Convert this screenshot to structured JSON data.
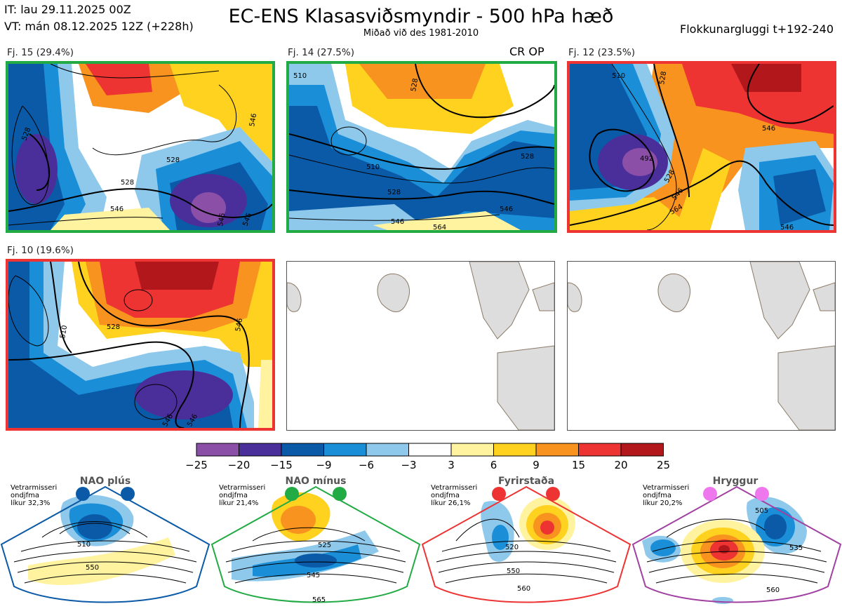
{
  "header": {
    "it": "IT: lau 29.11.2025 00Z",
    "vt": "VT: mán 08.12.2025 12Z  (+228h)",
    "title": "EC-ENS Klasasviðsmyndir - 500 hPa hæð",
    "subtitle": "Miðað við des 1981-2010",
    "window": "Flokkunargluggi t+192-240"
  },
  "panels": [
    {
      "label": "Fj. 15 (29.4%)",
      "border": "#22aa44",
      "extra": "",
      "contours": [
        "528",
        "528",
        "546",
        "528",
        "546",
        "546",
        "546"
      ]
    },
    {
      "label": "Fj. 14 (27.5%)",
      "border": "#22aa44",
      "extra": "CR OP",
      "contours": [
        "510",
        "528",
        "510",
        "528",
        "528",
        "546",
        "546",
        "564"
      ]
    },
    {
      "label": "Fj. 12 (23.5%)",
      "border": "#ee3333",
      "extra": "",
      "contours": [
        "510",
        "528",
        "492",
        "528",
        "546",
        "564",
        "546",
        "546"
      ]
    },
    {
      "label": "Fj. 10 (19.6%)",
      "border": "#ee3333",
      "extra": "",
      "contours": [
        "528",
        "546",
        "510",
        "546",
        "546"
      ]
    }
  ],
  "colorbar": {
    "ticks": [
      "−25",
      "−20",
      "−15",
      "−9",
      "−6",
      "−3",
      "3",
      "6",
      "9",
      "15",
      "20",
      "25"
    ],
    "colors": [
      "#8b4fa8",
      "#4a2f9a",
      "#0b5aa8",
      "#1a8fd8",
      "#8ec9ec",
      "#ffffff",
      "#fff3a0",
      "#ffd21f",
      "#f7931e",
      "#ee3333",
      "#b2181b"
    ]
  },
  "regimes": [
    {
      "name": "NAO plús",
      "info": [
        "Vetrarmisseri",
        "ondjfma",
        "líkur 32,3%"
      ],
      "color": "#0b5aa8",
      "contours": [
        "510",
        "550"
      ]
    },
    {
      "name": "NAO mínus",
      "info": [
        "Vetrarmisseri",
        "ondjfma",
        "líkur 21,4%"
      ],
      "color": "#22aa44",
      "contours": [
        "525",
        "545",
        "565"
      ]
    },
    {
      "name": "Fyrirstaða",
      "info": [
        "Vetrarmisseri",
        "ondjfma",
        "líkur 26,1%"
      ],
      "color": "#ee3333",
      "contours": [
        "520",
        "550",
        "560"
      ]
    },
    {
      "name": "Hryggur",
      "info": [
        "Vetrarmisseri",
        "ondjfma",
        "líkur 20,2%"
      ],
      "color": "#ee77ee",
      "contours": [
        "505",
        "535",
        "560"
      ]
    }
  ]
}
